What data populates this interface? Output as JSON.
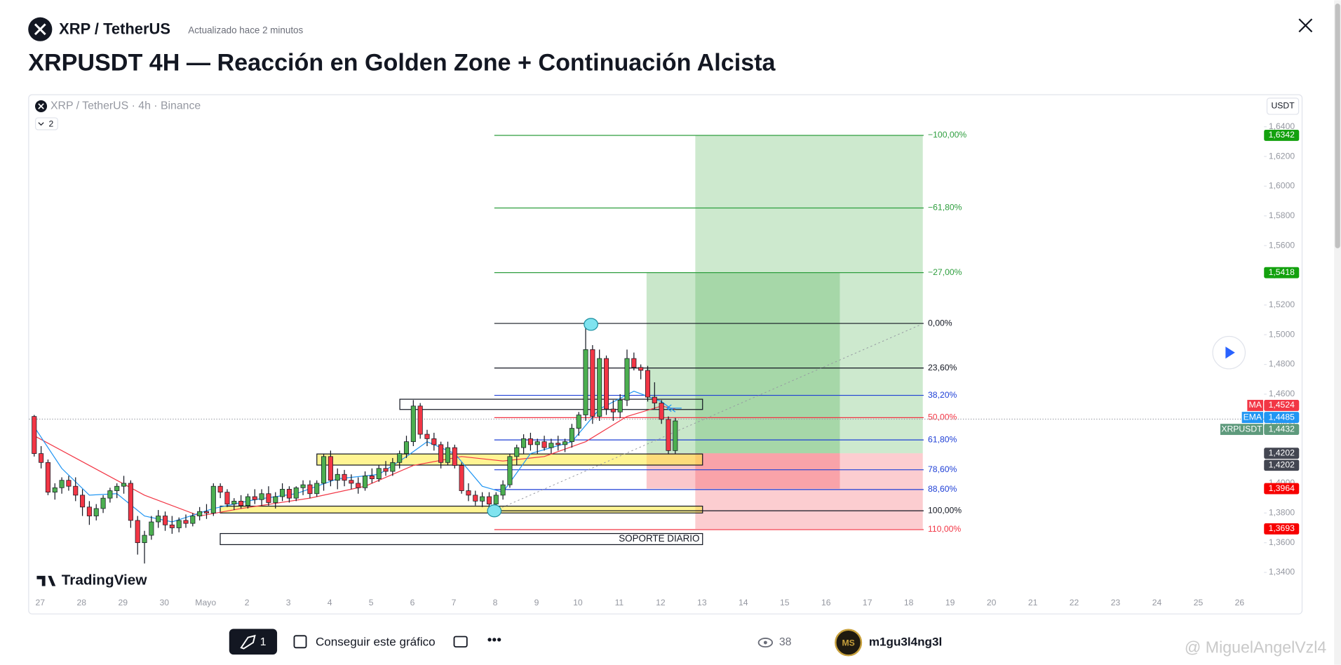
{
  "header": {
    "symbol": "XRP / TetherUS",
    "updated": "Actualizado hace 2 minutos",
    "title": "XRPUSDT 4H — Reacción en Golden Zone + Continuación Alcista"
  },
  "chart_data": {
    "type": "candlestick",
    "legend": "XRP / TetherUS · 4h · Binance",
    "indicators": 2,
    "currency": "USDT",
    "brand": "TradingView",
    "ylim": [
      1.3279,
      1.6607
    ],
    "yticks": [
      {
        "value": 1.34,
        "label": "1,3400"
      },
      {
        "value": 1.36,
        "label": "1,3600"
      },
      {
        "value": 1.38,
        "label": "1,3800"
      },
      {
        "value": 1.4,
        "label": "1,4000"
      },
      {
        "value": 1.42,
        "label": "1,4200"
      },
      {
        "value": 1.44,
        "label": "1,4400"
      },
      {
        "value": 1.46,
        "label": "1,4600"
      },
      {
        "value": 1.48,
        "label": "1,4800"
      },
      {
        "value": 1.5,
        "label": "1,5000"
      },
      {
        "value": 1.52,
        "label": "1,5200"
      },
      {
        "value": 1.54,
        "label": "1,5400"
      },
      {
        "value": 1.56,
        "label": "1,5600"
      },
      {
        "value": 1.58,
        "label": "1,5800"
      },
      {
        "value": 1.6,
        "label": "1,6000"
      },
      {
        "value": 1.62,
        "label": "1,6200"
      },
      {
        "value": 1.64,
        "label": "1,6400"
      }
    ],
    "x_labels": [
      "27",
      "28",
      "29",
      "30",
      "Mayo",
      "2",
      "3",
      "4",
      "5",
      "6",
      "7",
      "8",
      "9",
      "10",
      "11",
      "12",
      "13",
      "14",
      "15",
      "16",
      "17",
      "18",
      "19",
      "20",
      "21",
      "22",
      "23",
      "24",
      "25",
      "26"
    ],
    "candles": [
      [
        1.445,
        1.446,
        1.418,
        1.42
      ],
      [
        1.42,
        1.425,
        1.41,
        1.414
      ],
      [
        1.414,
        1.416,
        1.392,
        1.394
      ],
      [
        1.394,
        1.4,
        1.389,
        1.397
      ],
      [
        1.397,
        1.404,
        1.393,
        1.402
      ],
      [
        1.402,
        1.405,
        1.395,
        1.398
      ],
      [
        1.398,
        1.404,
        1.388,
        1.392
      ],
      [
        1.392,
        1.396,
        1.378,
        1.384
      ],
      [
        1.384,
        1.388,
        1.372,
        1.378
      ],
      [
        1.378,
        1.386,
        1.375,
        1.383
      ],
      [
        1.383,
        1.392,
        1.38,
        1.39
      ],
      [
        1.39,
        1.397,
        1.387,
        1.395
      ],
      [
        1.395,
        1.4,
        1.39,
        1.398
      ],
      [
        1.398,
        1.405,
        1.393,
        1.4
      ],
      [
        1.4,
        1.402,
        1.37,
        1.375
      ],
      [
        1.375,
        1.378,
        1.352,
        1.36
      ],
      [
        1.36,
        1.368,
        1.346,
        1.365
      ],
      [
        1.365,
        1.378,
        1.362,
        1.374
      ],
      [
        1.374,
        1.382,
        1.37,
        1.378
      ],
      [
        1.378,
        1.381,
        1.368,
        1.372
      ],
      [
        1.372,
        1.378,
        1.366,
        1.37
      ],
      [
        1.37,
        1.377,
        1.367,
        1.375
      ],
      [
        1.375,
        1.379,
        1.37,
        1.373
      ],
      [
        1.373,
        1.38,
        1.371,
        1.378
      ],
      [
        1.378,
        1.384,
        1.375,
        1.381
      ],
      [
        1.381,
        1.386,
        1.376,
        1.38
      ],
      [
        1.38,
        1.4,
        1.378,
        1.398
      ],
      [
        1.398,
        1.4,
        1.39,
        1.394
      ],
      [
        1.394,
        1.396,
        1.384,
        1.386
      ],
      [
        1.386,
        1.39,
        1.382,
        1.388
      ],
      [
        1.388,
        1.392,
        1.383,
        1.385
      ],
      [
        1.385,
        1.393,
        1.383,
        1.391
      ],
      [
        1.391,
        1.396,
        1.386,
        1.389
      ],
      [
        1.389,
        1.396,
        1.385,
        1.393
      ],
      [
        1.393,
        1.398,
        1.385,
        1.387
      ],
      [
        1.387,
        1.394,
        1.383,
        1.391
      ],
      [
        1.391,
        1.4,
        1.388,
        1.396
      ],
      [
        1.396,
        1.398,
        1.387,
        1.39
      ],
      [
        1.39,
        1.398,
        1.388,
        1.397
      ],
      [
        1.397,
        1.402,
        1.392,
        1.399
      ],
      [
        1.399,
        1.402,
        1.39,
        1.393
      ],
      [
        1.393,
        1.402,
        1.391,
        1.4
      ],
      [
        1.4,
        1.42,
        1.395,
        1.418
      ],
      [
        1.418,
        1.422,
        1.398,
        1.402
      ],
      [
        1.402,
        1.41,
        1.396,
        1.406
      ],
      [
        1.406,
        1.409,
        1.398,
        1.402
      ],
      [
        1.402,
        1.406,
        1.396,
        1.4
      ],
      [
        1.4,
        1.404,
        1.393,
        1.397
      ],
      [
        1.397,
        1.408,
        1.395,
        1.405
      ],
      [
        1.405,
        1.41,
        1.4,
        1.403
      ],
      [
        1.403,
        1.412,
        1.401,
        1.41
      ],
      [
        1.41,
        1.415,
        1.405,
        1.408
      ],
      [
        1.408,
        1.417,
        1.405,
        1.414
      ],
      [
        1.414,
        1.422,
        1.41,
        1.42
      ],
      [
        1.42,
        1.432,
        1.417,
        1.428
      ],
      [
        1.428,
        1.456,
        1.425,
        1.452
      ],
      [
        1.452,
        1.454,
        1.43,
        1.433
      ],
      [
        1.433,
        1.436,
        1.425,
        1.43
      ],
      [
        1.43,
        1.434,
        1.422,
        1.426
      ],
      [
        1.426,
        1.428,
        1.41,
        1.414
      ],
      [
        1.414,
        1.428,
        1.412,
        1.424
      ],
      [
        1.424,
        1.426,
        1.41,
        1.412
      ],
      [
        1.412,
        1.414,
        1.393,
        1.395
      ],
      [
        1.395,
        1.4,
        1.388,
        1.392
      ],
      [
        1.392,
        1.395,
        1.385,
        1.388
      ],
      [
        1.388,
        1.394,
        1.384,
        1.391
      ],
      [
        1.391,
        1.394,
        1.383,
        1.386
      ],
      [
        1.386,
        1.394,
        1.38,
        1.392
      ],
      [
        1.392,
        1.402,
        1.389,
        1.399
      ],
      [
        1.399,
        1.42,
        1.397,
        1.418
      ],
      [
        1.418,
        1.426,
        1.412,
        1.424
      ],
      [
        1.424,
        1.433,
        1.42,
        1.43
      ],
      [
        1.43,
        1.434,
        1.422,
        1.426
      ],
      [
        1.426,
        1.43,
        1.42,
        1.428
      ],
      [
        1.428,
        1.432,
        1.422,
        1.424
      ],
      [
        1.424,
        1.43,
        1.42,
        1.427
      ],
      [
        1.427,
        1.432,
        1.422,
        1.426
      ],
      [
        1.426,
        1.43,
        1.421,
        1.428
      ],
      [
        1.428,
        1.44,
        1.424,
        1.437
      ],
      [
        1.437,
        1.448,
        1.432,
        1.446
      ],
      [
        1.446,
        1.505,
        1.442,
        1.49
      ],
      [
        1.49,
        1.493,
        1.44,
        1.445
      ],
      [
        1.445,
        1.49,
        1.442,
        1.484
      ],
      [
        1.484,
        1.486,
        1.446,
        1.45
      ],
      [
        1.45,
        1.456,
        1.442,
        1.448
      ],
      [
        1.448,
        1.46,
        1.444,
        1.456
      ],
      [
        1.456,
        1.49,
        1.452,
        1.484
      ],
      [
        1.484,
        1.488,
        1.476,
        1.478
      ],
      [
        1.478,
        1.48,
        1.47,
        1.476
      ],
      [
        1.476,
        1.479,
        1.455,
        1.458
      ],
      [
        1.458,
        1.468,
        1.45,
        1.454
      ],
      [
        1.454,
        1.456,
        1.44,
        1.443
      ],
      [
        1.443,
        1.445,
        1.42,
        1.422
      ],
      [
        1.422,
        1.444,
        1.42,
        1.442
      ]
    ],
    "ema": {
      "name": "EMA",
      "color": "#2196f3",
      "x": [
        0,
        4,
        8,
        12,
        16,
        20,
        26,
        32,
        38,
        44,
        50,
        54,
        57,
        61,
        65,
        68,
        72,
        78,
        82,
        87,
        91,
        93
      ],
      "values": [
        1.438,
        1.41,
        1.392,
        1.393,
        1.378,
        1.374,
        1.383,
        1.389,
        1.393,
        1.403,
        1.406,
        1.418,
        1.428,
        1.42,
        1.398,
        1.394,
        1.42,
        1.428,
        1.45,
        1.462,
        1.455,
        1.448
      ]
    },
    "ma": {
      "name": "MA",
      "color": "#f23645",
      "x": [
        0,
        8,
        16,
        24,
        30,
        40,
        48,
        55,
        62,
        68,
        74,
        80,
        86,
        91,
        93
      ],
      "values": [
        1.432,
        1.412,
        1.392,
        1.378,
        1.383,
        1.39,
        1.398,
        1.412,
        1.418,
        1.415,
        1.418,
        1.428,
        1.445,
        1.452,
        1.45
      ]
    },
    "fib_levels": [
      {
        "label": "−100,00%",
        "value": 1.6342,
        "color": "#2e9e3e"
      },
      {
        "label": "−61,80%",
        "value": 1.5853,
        "color": "#2e9e3e"
      },
      {
        "label": "−27,00%",
        "value": 1.5418,
        "color": "#2e9e3e"
      },
      {
        "label": "0,00%",
        "value": 1.5076,
        "color": "#131722"
      },
      {
        "label": "23,60%",
        "value": 1.4776,
        "color": "#131722"
      },
      {
        "label": "38,20%",
        "value": 1.4592,
        "color": "#1e3fd6"
      },
      {
        "label": "50,00%",
        "value": 1.4442,
        "color": "#f23645"
      },
      {
        "label": "61,80%",
        "value": 1.4292,
        "color": "#1e3fd6"
      },
      {
        "label": "78,60%",
        "value": 1.4091,
        "color": "#1e3fd6"
      },
      {
        "label": "88,60%",
        "value": 1.3958,
        "color": "#1e3fd6"
      },
      {
        "label": "100,00%",
        "value": 1.3815,
        "color": "#131722"
      },
      {
        "label": "110,00%",
        "value": 1.3688,
        "color": "#f23645"
      }
    ],
    "axis_labels": [
      {
        "value": {
          "value": 1.6342,
          "label": "1,6342"
        },
        "color": "#13a10e"
      },
      {
        "value": {
          "value": 1.5418,
          "label": "1,5418"
        },
        "color": "#13a10e"
      },
      {
        "name": "MA",
        "value": {
          "value": 1.4524,
          "label": "1,4524"
        },
        "color": "#f23645"
      },
      {
        "name": "EMA",
        "value": {
          "value": 1.4485,
          "label": "1,4485"
        },
        "color": "#2196f3"
      },
      {
        "name": "XRPUSDT",
        "value": {
          "value": 1.4432,
          "label": "1,4432"
        },
        "color": "#5e9a7c"
      },
      {
        "value": {
          "value": 1.4202,
          "label": "1,4202"
        },
        "color": "#434651"
      },
      {
        "value": {
          "value": 1.4202,
          "label": "1,4202"
        },
        "color": "#434651"
      },
      {
        "value": {
          "value": 1.3964,
          "label": "1,3964"
        },
        "color": "#f70000"
      },
      {
        "value": {
          "value": 1.3693,
          "label": "1,3693"
        },
        "color": "#f70000"
      }
    ],
    "support_label": "SOPORTE DIARIO"
  },
  "footer": {
    "boosts": 1,
    "get_chart": "Conseguir este gráfico",
    "views": 38,
    "author": "m1gu3l4ng3l",
    "watermark": "@ MiguelAngelVzl4"
  }
}
